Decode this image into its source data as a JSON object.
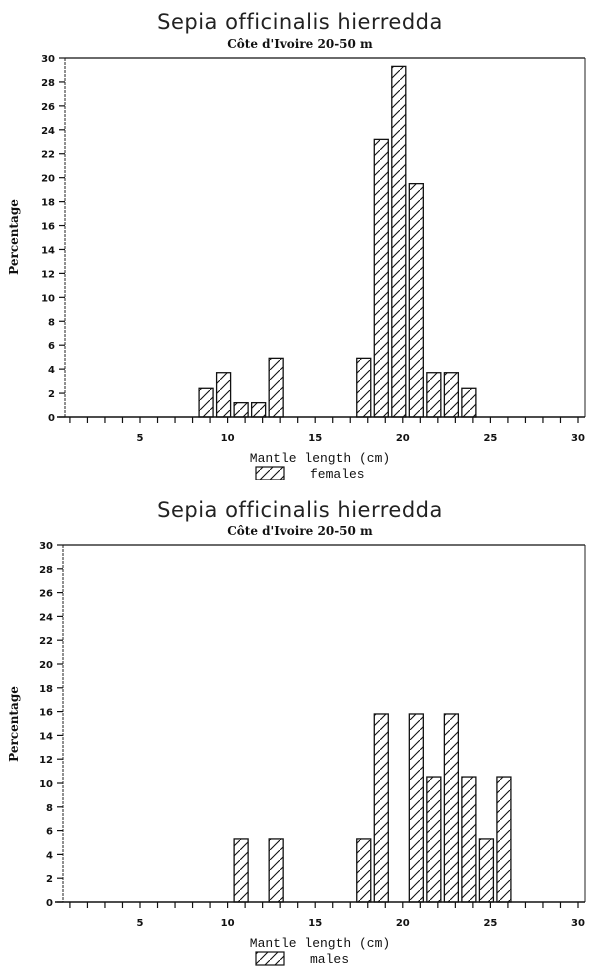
{
  "chart_data": [
    {
      "type": "bar",
      "title": "Sepia officinalis hierredda",
      "subtitle": "Côte d'Ivoire 20-50 m",
      "xlabel": "Mantle length (cm)",
      "ylabel": "Percentage",
      "legend": [
        "females"
      ],
      "legend_position": "below x-axis label",
      "xlim": [
        0.7,
        30.4
      ],
      "ylim": [
        0,
        30
      ],
      "xticks_labeled": [
        5,
        10,
        15,
        20,
        25,
        30
      ],
      "yticks": [
        0,
        2,
        4,
        6,
        8,
        10,
        12,
        14,
        16,
        18,
        20,
        22,
        24,
        26,
        28,
        30
      ],
      "grid": false,
      "series": [
        {
          "name": "females",
          "x": [
            9,
            10,
            11,
            12,
            13,
            18,
            19,
            20,
            21,
            22,
            23,
            24
          ],
          "values": [
            2.4,
            3.7,
            1.2,
            1.2,
            4.9,
            4.9,
            23.2,
            29.3,
            19.5,
            3.7,
            3.7,
            2.4
          ]
        }
      ]
    },
    {
      "type": "bar",
      "title": "Sepia officinalis hierredda",
      "subtitle": "Côte d'Ivoire 20-50 m",
      "xlabel": "Mantle length (cm)",
      "ylabel": "Percentage",
      "legend": [
        "males"
      ],
      "legend_position": "below x-axis label",
      "xlim": [
        0.7,
        30.4
      ],
      "ylim": [
        0,
        30
      ],
      "xticks_labeled": [
        5,
        10,
        15,
        20,
        25,
        30
      ],
      "yticks": [
        0,
        2,
        4,
        6,
        8,
        10,
        12,
        14,
        16,
        18,
        20,
        22,
        24,
        26,
        28,
        30
      ],
      "grid": false,
      "series": [
        {
          "name": "males",
          "x": [
            11,
            13,
            18,
            19,
            21,
            22,
            23,
            24,
            25,
            26
          ],
          "values": [
            5.3,
            5.3,
            5.3,
            15.8,
            15.8,
            10.5,
            15.8,
            10.5,
            5.3,
            10.5
          ]
        }
      ]
    }
  ],
  "charts": [
    {
      "title": "Sepia officinalis hierredda",
      "subtitle": "Côte d'Ivoire 20-50 m",
      "xlabel": "Mantle length (cm)",
      "ylabel": "Percentage",
      "legend_label": "females"
    },
    {
      "title": "Sepia officinalis hierredda",
      "subtitle": "Côte d'Ivoire 20-50 m",
      "xlabel": "Mantle length (cm)",
      "ylabel": "Percentage",
      "legend_label": "males"
    }
  ],
  "colors": {
    "ink": "#111111",
    "background": "#ffffff"
  }
}
